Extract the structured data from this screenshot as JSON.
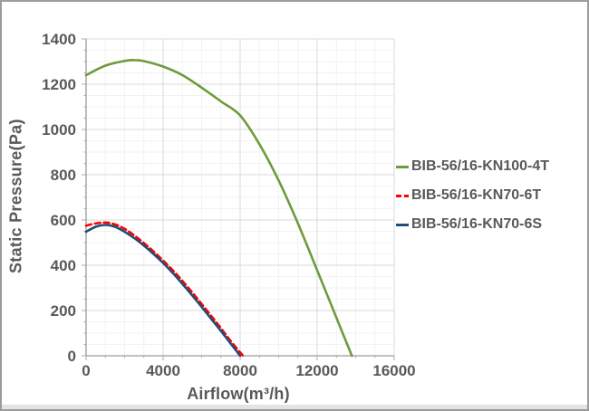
{
  "chart_data": {
    "type": "line",
    "title": "",
    "xlabel": "Airflow(m³/h)",
    "ylabel": "Static Pressure(Pa)",
    "xlim": [
      0,
      16000
    ],
    "ylim": [
      0,
      1400
    ],
    "x_major_ticks": [
      0,
      4000,
      8000,
      12000,
      16000
    ],
    "y_major_ticks": [
      0,
      200,
      400,
      600,
      800,
      1000,
      1200,
      1400
    ],
    "x_minor_step": 1000,
    "y_minor_step": 50,
    "grid": "major+minor",
    "legend_position": "right-middle",
    "colors": {
      "text": "#595959",
      "axis_line": "#9B9B9B",
      "tick_mark": "#ABABAB",
      "major_grid": "#D9D9D9",
      "minor_grid": "#F2F2F2"
    },
    "series": [
      {
        "name": "BIB-56/16-KN100-4T",
        "color": "#6E9B3C",
        "style": "solid",
        "points": [
          [
            0,
            1240
          ],
          [
            1000,
            1282
          ],
          [
            2000,
            1303
          ],
          [
            2500,
            1307
          ],
          [
            3000,
            1302
          ],
          [
            4000,
            1278
          ],
          [
            5000,
            1240
          ],
          [
            6000,
            1185
          ],
          [
            7000,
            1124
          ],
          [
            8000,
            1062
          ],
          [
            9000,
            935
          ],
          [
            10000,
            775
          ],
          [
            11000,
            585
          ],
          [
            12000,
            378
          ],
          [
            13000,
            168
          ],
          [
            13800,
            0
          ]
        ]
      },
      {
        "name": "BIB-56/16-KN70-6T",
        "color": "#FF0000",
        "style": "dashed",
        "points": [
          [
            0,
            575
          ],
          [
            500,
            585
          ],
          [
            1000,
            589
          ],
          [
            1500,
            581
          ],
          [
            2000,
            561
          ],
          [
            2500,
            532
          ],
          [
            3000,
            498
          ],
          [
            3500,
            461
          ],
          [
            4000,
            421
          ],
          [
            4500,
            378
          ],
          [
            5000,
            331
          ],
          [
            5500,
            281
          ],
          [
            6000,
            229
          ],
          [
            6500,
            176
          ],
          [
            7000,
            122
          ],
          [
            7500,
            66
          ],
          [
            8150,
            0
          ]
        ]
      },
      {
        "name": "BIB-56/16-KN70-6S",
        "color": "#1F4E79",
        "style": "solid",
        "points": [
          [
            0,
            548
          ],
          [
            500,
            570
          ],
          [
            1000,
            578
          ],
          [
            1500,
            570
          ],
          [
            2000,
            548
          ],
          [
            2500,
            520
          ],
          [
            3000,
            487
          ],
          [
            3500,
            450
          ],
          [
            4000,
            410
          ],
          [
            4500,
            366
          ],
          [
            5000,
            318
          ],
          [
            5500,
            268
          ],
          [
            6000,
            216
          ],
          [
            6500,
            163
          ],
          [
            7000,
            110
          ],
          [
            7500,
            55
          ],
          [
            8000,
            0
          ]
        ]
      }
    ]
  }
}
